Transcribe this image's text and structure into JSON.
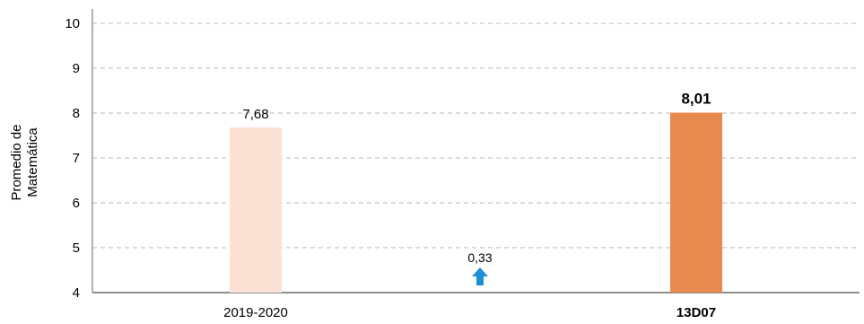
{
  "chart_data": {
    "type": "bar",
    "categories": [
      "2019-2020",
      "13D07"
    ],
    "values": [
      7.68,
      8.01
    ],
    "value_labels": [
      "7,68",
      "8,01"
    ],
    "bar_colors": [
      "#fbe2d5",
      "#e88a4d"
    ],
    "bold_categories": [
      false,
      true
    ],
    "ylabel_lines": [
      "Promedio de",
      "Matemática"
    ],
    "ylim": [
      4,
      10
    ],
    "yticks": [
      4,
      5,
      6,
      7,
      8,
      9,
      10
    ],
    "grid": true,
    "difference": {
      "label": "0,33",
      "direction": "up",
      "arrow_color": "#1e8fd6"
    }
  }
}
